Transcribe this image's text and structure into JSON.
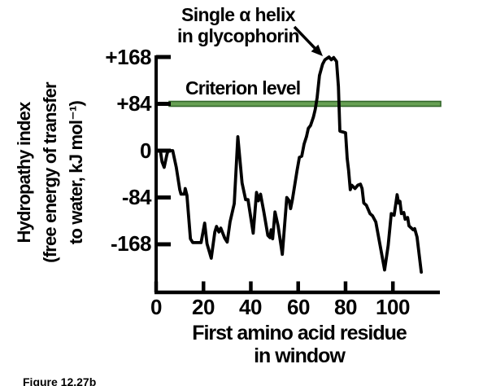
{
  "caption": "Figure 12.27b",
  "colors": {
    "background": "#ffffff",
    "axis": "#000000",
    "curve": "#000000",
    "text": "#000000",
    "criterion_fill": "#67a054",
    "criterion_edge": "#33672a"
  },
  "chart_data": {
    "type": "line",
    "title": "",
    "xlabel": "First amino acid residue in window",
    "xlabel_lines": [
      "First amino acid residue",
      "in window"
    ],
    "ylabel": "Hydropathy index (free energy of transfer to water, kJ mol⁻¹)",
    "ylabel_lines": [
      "Hydropathy index",
      "(free energy of transfer",
      "to water, kJ mol⁻¹)"
    ],
    "xlim": [
      0,
      120
    ],
    "ylim": [
      -255,
      175
    ],
    "grid": false,
    "legend": "none",
    "xticks": [
      0,
      20,
      40,
      60,
      80,
      100
    ],
    "xtick_labels": [
      "0",
      "20",
      "40",
      "60",
      "80",
      "100"
    ],
    "ytick_values": [
      168,
      84,
      0,
      -84,
      -168
    ],
    "ytick_labels": [
      "+168",
      "+84",
      "0",
      "-84",
      "-168"
    ],
    "annotation": {
      "line1": "Single α helix",
      "line2": "in glycophorin",
      "points_to": "main peak near residue 74 at value ≈ +168"
    },
    "criterion": {
      "label": "Criterion level",
      "value": 84
    },
    "series": [
      {
        "name": "Hydropathy index along glycophorin sequence",
        "points": [
          [
            0,
            0
          ],
          [
            1.8,
            0
          ],
          [
            2.5,
            -20
          ],
          [
            3.4,
            -30
          ],
          [
            4.5,
            -8
          ],
          [
            5,
            0
          ],
          [
            7,
            0
          ],
          [
            8.5,
            -30
          ],
          [
            10,
            -70
          ],
          [
            10.5,
            -78
          ],
          [
            11.9,
            -78
          ],
          [
            12.3,
            -68
          ],
          [
            13,
            -80
          ],
          [
            14.5,
            -158
          ],
          [
            15.5,
            -165
          ],
          [
            19,
            -165
          ],
          [
            20.5,
            -130
          ],
          [
            21.5,
            -167
          ],
          [
            23.3,
            -193
          ],
          [
            24.8,
            -146
          ],
          [
            25.5,
            -136
          ],
          [
            26.5,
            -146
          ],
          [
            27.3,
            -139
          ],
          [
            29,
            -157
          ],
          [
            30,
            -164
          ],
          [
            31.2,
            -128
          ],
          [
            33,
            -95
          ],
          [
            34.5,
            25
          ],
          [
            36.3,
            -58
          ],
          [
            37.8,
            -88
          ],
          [
            38.8,
            -88
          ],
          [
            41,
            -148
          ],
          [
            42.4,
            -75
          ],
          [
            43.2,
            -90
          ],
          [
            44.1,
            -78
          ],
          [
            45.5,
            -110
          ],
          [
            47.2,
            -152
          ],
          [
            48.1,
            -156
          ],
          [
            48.6,
            -142
          ],
          [
            49.2,
            -158
          ],
          [
            50.2,
            -110
          ],
          [
            51.5,
            -135
          ],
          [
            53.3,
            -186
          ],
          [
            55.2,
            -84
          ],
          [
            56.2,
            -90
          ],
          [
            56.8,
            -104
          ],
          [
            57.6,
            -87
          ],
          [
            59.5,
            -36
          ],
          [
            60.5,
            -12
          ],
          [
            61.5,
            -10
          ],
          [
            62.5,
            12
          ],
          [
            63.5,
            25
          ],
          [
            64.3,
            40
          ],
          [
            65.2,
            45
          ],
          [
            66.4,
            60
          ],
          [
            67.2,
            74
          ],
          [
            68,
            95
          ],
          [
            69,
            135
          ],
          [
            70.3,
            155
          ],
          [
            71.3,
            163
          ],
          [
            73,
            168
          ],
          [
            74,
            163
          ],
          [
            75,
            167
          ],
          [
            76.2,
            160
          ],
          [
            77,
            115
          ],
          [
            77.6,
            35
          ],
          [
            80,
            32
          ],
          [
            80.7,
            -14
          ],
          [
            81.3,
            -35
          ],
          [
            82,
            -70
          ],
          [
            82.6,
            -62
          ],
          [
            84,
            -68
          ],
          [
            85.2,
            -62
          ],
          [
            86.3,
            -60
          ],
          [
            87,
            -68
          ],
          [
            87.7,
            -94
          ],
          [
            88.8,
            -98
          ],
          [
            90.3,
            -113
          ],
          [
            91.4,
            -117
          ],
          [
            92.8,
            -128
          ],
          [
            96.5,
            -214
          ],
          [
            98,
            -170
          ],
          [
            99.3,
            -113
          ],
          [
            100.5,
            -116
          ],
          [
            101.8,
            -79
          ],
          [
            102.4,
            -94
          ],
          [
            103,
            -91
          ],
          [
            103.6,
            -113
          ],
          [
            104.6,
            -111
          ],
          [
            105.2,
            -123
          ],
          [
            106.2,
            -120
          ],
          [
            106.8,
            -135
          ],
          [
            108.6,
            -142
          ],
          [
            109.2,
            -140
          ],
          [
            110.2,
            -155
          ],
          [
            112,
            -218
          ]
        ]
      }
    ]
  }
}
